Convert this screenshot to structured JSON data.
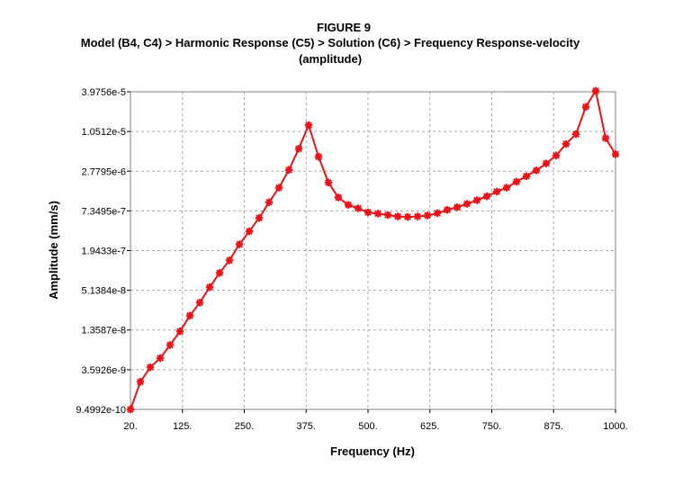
{
  "chart_data": {
    "type": "line",
    "title": "FIGURE 9",
    "subtitle_lines": [
      "Model (B4, C4) > Harmonic Response (C5) > Solution (C6) > Frequency Response-velocity",
      "(amplitude)"
    ],
    "xlabel": "Frequency (Hz)",
    "ylabel": "Amplitude (mm/s)",
    "xlim": [
      20,
      1000
    ],
    "x_ticks": [
      20,
      125,
      250,
      375,
      500,
      625,
      750,
      875,
      1000
    ],
    "x_tick_labels": [
      "20.",
      "125.",
      "250.",
      "375.",
      "500.",
      "625.",
      "750.",
      "875.",
      "1000."
    ],
    "y_scale": "log",
    "ylim": [
      9.4992e-10,
      3.9756e-05
    ],
    "y_ticks": [
      9.4992e-10,
      3.5926e-09,
      1.3587e-08,
      5.1384e-08,
      1.9433e-07,
      7.3495e-07,
      2.7795e-06,
      1.0512e-05,
      3.9756e-05
    ],
    "y_tick_labels": [
      "9.4992e-10",
      "3.5926e-9",
      "1.3587e-8",
      "5.1384e-8",
      "1.9433e-7",
      "7.3495e-7",
      "2.7795e-6",
      "1.0512e-5",
      "3.9756e-5"
    ],
    "grid": true,
    "series": [
      {
        "color": "#e8141a",
        "marker": "star",
        "x": [
          20,
          40,
          60,
          80,
          100,
          120,
          140,
          160,
          180,
          200,
          220,
          240,
          260,
          280,
          300,
          320,
          340,
          360,
          380,
          400,
          420,
          440,
          460,
          480,
          500,
          520,
          540,
          560,
          580,
          600,
          620,
          640,
          660,
          680,
          700,
          720,
          740,
          760,
          780,
          800,
          820,
          840,
          860,
          880,
          900,
          920,
          940,
          960,
          980,
          1000
        ],
        "y": [
          9.5e-10,
          2.4e-09,
          3.9e-09,
          5.3e-09,
          8.2e-09,
          1.3e-08,
          2.2e-08,
          3.4e-08,
          5.7e-08,
          9.2e-08,
          1.4e-07,
          2.4e-07,
          3.7e-07,
          5.8e-07,
          9.8e-07,
          1.6e-06,
          2.9e-06,
          5.9e-06,
          1.3e-05,
          4.5e-06,
          1.9e-06,
          1.15e-06,
          9e-07,
          8e-07,
          7e-07,
          6.7e-07,
          6.4e-07,
          6.1e-07,
          6e-07,
          6.1e-07,
          6.3e-07,
          6.8e-07,
          7.6e-07,
          8.3e-07,
          9.3e-07,
          1.05e-06,
          1.2e-06,
          1.4e-06,
          1.6e-06,
          1.95e-06,
          2.35e-06,
          2.85e-06,
          3.6e-06,
          4.7e-06,
          6.9e-06,
          9.6e-06,
          2.4e-05,
          4.1e-05,
          8.4e-06,
          4.9e-06
        ]
      }
    ]
  }
}
